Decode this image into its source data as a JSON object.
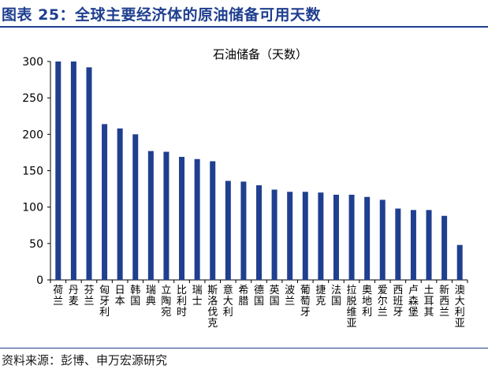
{
  "figure": {
    "title": "图表 25：全球主要经济体的原油储备可用天数",
    "source": "资料来源：彭博、申万宏源研究"
  },
  "colors": {
    "bar": "#1f3f8f",
    "title": "#1f3f8f",
    "axis": "#000000"
  },
  "chart_data": {
    "type": "bar",
    "title": "石油储备（天数）",
    "categories": [
      "荷兰",
      "丹麦",
      "芬兰",
      "匈牙利",
      "日本",
      "韩国",
      "瑞典",
      "立陶宛",
      "比利时",
      "瑞士",
      "斯洛伐克",
      "意大利",
      "希腊",
      "德国",
      "英国",
      "波兰",
      "葡萄牙",
      "捷克",
      "法国",
      "拉脱维亚",
      "奥地利",
      "爱尔兰",
      "西班牙",
      "卢森堡",
      "土耳其",
      "新西兰",
      "澳大利亚"
    ],
    "values": [
      300,
      300,
      292,
      214,
      208,
      200,
      177,
      176,
      169,
      166,
      163,
      136,
      135,
      130,
      124,
      121,
      121,
      120,
      117,
      117,
      114,
      110,
      98,
      96,
      96,
      88,
      48
    ],
    "yticks": [
      0,
      50,
      100,
      150,
      200,
      250,
      300
    ],
    "ylim": [
      0,
      300
    ],
    "grid": false,
    "legend": "none"
  }
}
